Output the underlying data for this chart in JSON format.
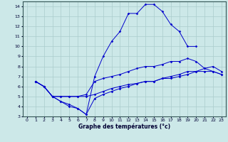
{
  "title": "Graphe des températures (°c)",
  "bg_color": "#cce8e8",
  "grid_color": "#aacccc",
  "line_color": "#0000cc",
  "xlim": [
    -0.5,
    23.5
  ],
  "ylim": [
    3,
    14.5
  ],
  "xticks": [
    0,
    1,
    2,
    3,
    4,
    5,
    6,
    7,
    8,
    9,
    10,
    11,
    12,
    13,
    14,
    15,
    16,
    17,
    18,
    19,
    20,
    21,
    22,
    23
  ],
  "yticks": [
    3,
    4,
    5,
    6,
    7,
    8,
    9,
    10,
    11,
    12,
    13,
    14
  ],
  "lines": [
    {
      "x": [
        1,
        2,
        3,
        4,
        5,
        6,
        7,
        8,
        9,
        10,
        11,
        12,
        13,
        14,
        15,
        16,
        17,
        18,
        19,
        20
      ],
      "y": [
        6.5,
        6.0,
        5.0,
        4.5,
        4.0,
        3.8,
        3.2,
        7.0,
        9.0,
        10.5,
        11.5,
        13.3,
        13.3,
        14.2,
        14.2,
        13.5,
        12.2,
        11.5,
        10.0,
        10.0
      ]
    },
    {
      "x": [
        1,
        2,
        3,
        4,
        5,
        6,
        7,
        8,
        9,
        10,
        11,
        12,
        13,
        14,
        15,
        16,
        17,
        18,
        19,
        20,
        21,
        22,
        23
      ],
      "y": [
        6.5,
        6.0,
        5.0,
        5.0,
        5.0,
        5.0,
        5.2,
        6.5,
        6.8,
        7.0,
        7.2,
        7.5,
        7.8,
        8.0,
        8.0,
        8.2,
        8.5,
        8.5,
        8.8,
        8.5,
        7.8,
        7.5,
        7.2
      ]
    },
    {
      "x": [
        1,
        2,
        3,
        4,
        5,
        6,
        7,
        8,
        9,
        10,
        11,
        12,
        13,
        14,
        15,
        16,
        17,
        18,
        19,
        20,
        21,
        22,
        23
      ],
      "y": [
        6.5,
        6.0,
        5.0,
        5.0,
        5.0,
        5.0,
        5.0,
        5.2,
        5.5,
        5.8,
        6.0,
        6.2,
        6.3,
        6.5,
        6.5,
        6.8,
        7.0,
        7.2,
        7.5,
        7.5,
        7.5,
        7.5,
        7.2
      ]
    },
    {
      "x": [
        1,
        2,
        3,
        4,
        5,
        6,
        7,
        8,
        9,
        10,
        11,
        12,
        13,
        14,
        15,
        16,
        17,
        18,
        19,
        20,
        21,
        22,
        23
      ],
      "y": [
        6.5,
        6.0,
        5.0,
        4.5,
        4.2,
        3.8,
        3.2,
        4.8,
        5.2,
        5.5,
        5.8,
        6.0,
        6.3,
        6.5,
        6.5,
        6.8,
        6.8,
        7.0,
        7.2,
        7.5,
        7.8,
        8.0,
        7.5
      ]
    }
  ],
  "figwidth": 3.2,
  "figheight": 2.0,
  "dpi": 100
}
